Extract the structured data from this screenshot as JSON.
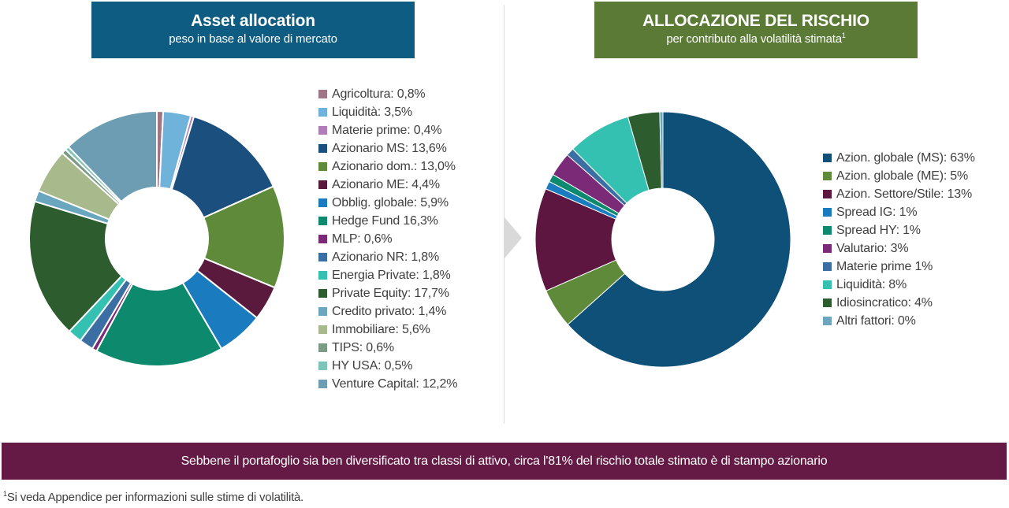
{
  "left_panel": {
    "title": "Asset allocation",
    "subtitle": "peso in base al valore di mercato"
  },
  "right_panel": {
    "title": "ALLOCAZIONE DEL RISCHIO",
    "subtitle": "per contributo alla volatilità stimata",
    "subtitle_footnote_mark": "1"
  },
  "banner_text": "Sebbene il portafoglio sia ben diversificato tra classi di attivo, circa l'81% del rischio totale stimato è di stampo azionario",
  "footnote": {
    "mark": "1",
    "text": "Si veda Appendice per informazioni sulle stime di volatilità."
  },
  "chart_data": [
    {
      "type": "pie",
      "donut": true,
      "title": "Asset allocation",
      "subtitle": "peso in base al valore di mercato",
      "legend_position": "right",
      "series": [
        {
          "label": "Agricoltura: 0,8%",
          "value": 0.8,
          "color": "#a07585"
        },
        {
          "label": "Liquidità: 3,5%",
          "value": 3.5,
          "color": "#6fb2da"
        },
        {
          "label": "Materie prime: 0,4%",
          "value": 0.4,
          "color": "#b07db8"
        },
        {
          "label": "Azionario MS: 13,6%",
          "value": 13.6,
          "color": "#1b4f7e"
        },
        {
          "label": "Azionario dom.: 13,0%",
          "value": 13.0,
          "color": "#5e8a3a"
        },
        {
          "label": "Azionario ME: 4,4%",
          "value": 4.4,
          "color": "#5a1a3e"
        },
        {
          "label": "Obblig. globale: 5,9%",
          "value": 5.9,
          "color": "#1a7bbf"
        },
        {
          "label": "Hedge Fund 16,3%",
          "value": 16.3,
          "color": "#0d8a6d"
        },
        {
          "label": "MLP: 0,6%",
          "value": 0.6,
          "color": "#7b2a78"
        },
        {
          "label": "Azionario NR: 1,8%",
          "value": 1.8,
          "color": "#3b6fa3"
        },
        {
          "label": "Energia Private: 1,8%",
          "value": 1.8,
          "color": "#35c1b1"
        },
        {
          "label": "Private Equity: 17,7%",
          "value": 17.7,
          "color": "#2d5d2e"
        },
        {
          "label": "Credito privato: 1,4%",
          "value": 1.4,
          "color": "#6ba6bf"
        },
        {
          "label": "Immobiliare: 5,6%",
          "value": 5.6,
          "color": "#a8ba8c"
        },
        {
          "label": "TIPS: 0,6%",
          "value": 0.6,
          "color": "#7b9b84"
        },
        {
          "label": "HY USA: 0,5%",
          "value": 0.5,
          "color": "#7fc4b8"
        },
        {
          "label": "Venture Capital: 12,2%",
          "value": 12.2,
          "color": "#6d9db3"
        }
      ]
    },
    {
      "type": "pie",
      "donut": true,
      "title": "ALLOCAZIONE DEL RISCHIO",
      "subtitle": "per contributo alla volatilità stimata",
      "legend_position": "right",
      "series": [
        {
          "label": "Azion. globale (MS): 63%",
          "value": 63,
          "color": "#0e5078"
        },
        {
          "label": "Azion. globale (ME): 5%",
          "value": 5,
          "color": "#5e8a3a"
        },
        {
          "label": "Azion. Settore/Stile: 13%",
          "value": 13,
          "color": "#5c1640"
        },
        {
          "label": "Spread IG: 1%",
          "value": 1,
          "color": "#1a7bbf"
        },
        {
          "label": "Spread HY: 1%",
          "value": 1,
          "color": "#0d8a6d"
        },
        {
          "label": "Valutario: 3%",
          "value": 3,
          "color": "#7b2a78"
        },
        {
          "label": "Materie prime 1%",
          "value": 1,
          "color": "#3b6fa3"
        },
        {
          "label": "Liquidità: 8%",
          "value": 8,
          "color": "#35c1b1"
        },
        {
          "label": "Idiosincratico: 4%",
          "value": 4,
          "color": "#2d5d2e"
        },
        {
          "label": "Altri fattori: 0%",
          "value": 0.4,
          "color": "#6ba6bf"
        }
      ]
    }
  ]
}
